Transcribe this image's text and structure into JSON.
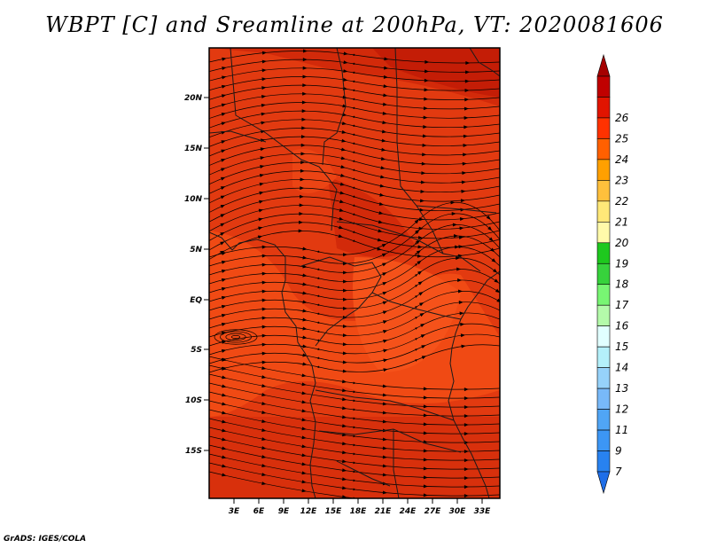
{
  "title": "WBPT [C] and Sreamline at 200hPa, VT: 2020081606",
  "credit": "GrADS: IGES/COLA",
  "lat_ticks": [
    "20N",
    "15N",
    "10N",
    "5N",
    "EQ",
    "5S",
    "10S",
    "15S"
  ],
  "lon_ticks": [
    "3E",
    "6E",
    "9E",
    "12E",
    "15E",
    "18E",
    "21E",
    "24E",
    "27E",
    "30E",
    "33E"
  ],
  "colorbar": {
    "levels": [
      "7",
      "9",
      "11",
      "12",
      "13",
      "14",
      "15",
      "16",
      "17",
      "18",
      "19",
      "20",
      "21",
      "22",
      "23",
      "24",
      "25",
      "26"
    ],
    "colors": [
      "#1e6ee8",
      "#2882f0",
      "#3c96f5",
      "#50a5f5",
      "#78b9f9",
      "#96d2fa",
      "#b4f0fa",
      "#e1ffff",
      "#b4faaa",
      "#78f573",
      "#37d23c",
      "#1ec81e",
      "#fffaaa",
      "#ffe878",
      "#ffc03c",
      "#ffa000",
      "#ff6000",
      "#ff3200",
      "#e11400",
      "#c00000",
      "#a50000"
    ]
  }
}
